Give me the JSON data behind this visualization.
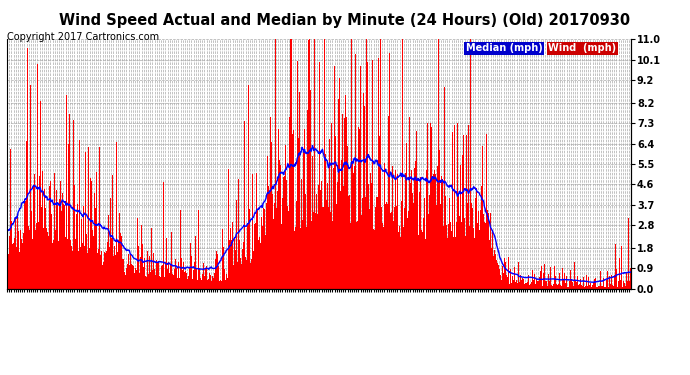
{
  "title": "Wind Speed Actual and Median by Minute (24 Hours) (Old) 20170930",
  "copyright": "Copyright 2017 Cartronics.com",
  "legend_median_label": "Median (mph)",
  "legend_wind_label": "Wind  (mph)",
  "legend_median_bg": "#0000cc",
  "legend_wind_bg": "#cc0000",
  "bar_color": "#ff0000",
  "line_color": "#0000ff",
  "ylim": [
    0.0,
    11.0
  ],
  "yticks": [
    0.0,
    0.9,
    1.8,
    2.8,
    3.7,
    4.6,
    5.5,
    6.4,
    7.3,
    8.2,
    9.2,
    10.1,
    11.0
  ],
  "background_color": "#ffffff",
  "grid_color": "#aaaaaa",
  "title_fontsize": 10.5,
  "copyright_fontsize": 7,
  "tick_fontsize": 5.5,
  "ytick_fontsize": 7,
  "figsize": [
    6.9,
    3.75
  ],
  "dpi": 100
}
